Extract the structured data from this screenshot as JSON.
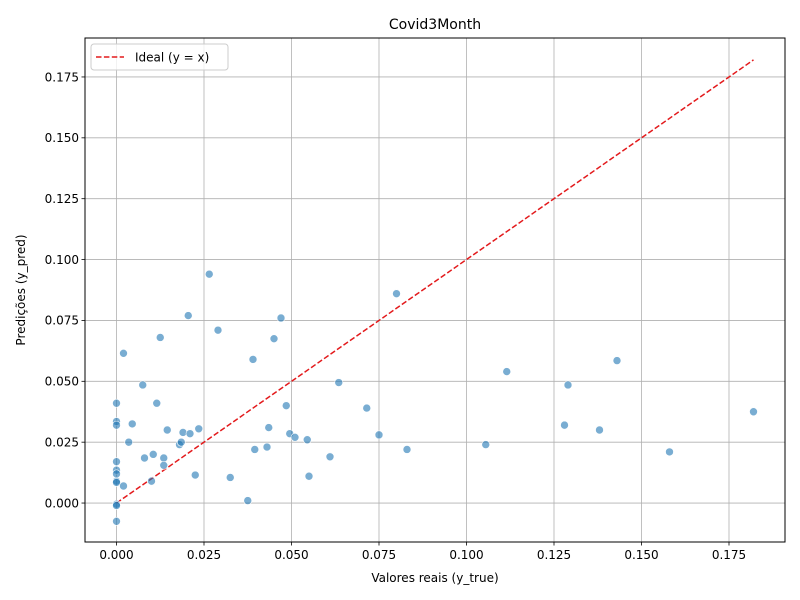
{
  "chart_data": {
    "type": "scatter",
    "title": "Covid3Month",
    "xlabel": "Valores reais (y_true)",
    "ylabel": "Predições (y_pred)",
    "xlim": [
      -0.009,
      0.191
    ],
    "ylim": [
      -0.016,
      0.191
    ],
    "grid": true,
    "legend": {
      "position": "top-left",
      "entries": [
        {
          "label": "Ideal (y = x)",
          "style": "dashed",
          "color": "#e31a1c"
        }
      ]
    },
    "x_ticks": [
      "0.000",
      "0.025",
      "0.050",
      "0.075",
      "0.100",
      "0.125",
      "0.150",
      "0.175"
    ],
    "x_tick_values": [
      0,
      0.025,
      0.05,
      0.075,
      0.1,
      0.125,
      0.15,
      0.175
    ],
    "y_ticks": [
      "0.000",
      "0.025",
      "0.050",
      "0.075",
      "0.100",
      "0.125",
      "0.150",
      "0.175"
    ],
    "y_tick_values": [
      0,
      0.025,
      0.05,
      0.075,
      0.1,
      0.125,
      0.15,
      0.175
    ],
    "ideal_line": {
      "x": [
        0,
        0.182
      ],
      "y": [
        0,
        0.182
      ]
    },
    "point_color": "#1f77b4",
    "line_color": "#e31a1c",
    "points": [
      [
        0.0,
        0.041
      ],
      [
        0.0,
        0.0335
      ],
      [
        0.0,
        0.032
      ],
      [
        0.0,
        0.017
      ],
      [
        0.0,
        0.0135
      ],
      [
        0.0,
        0.012
      ],
      [
        0.0,
        0.009
      ],
      [
        0.0,
        0.0085
      ],
      [
        0.0,
        -0.0005
      ],
      [
        0.0,
        -0.001
      ],
      [
        0.0,
        -0.0075
      ],
      [
        0.002,
        0.007
      ],
      [
        0.002,
        0.0615
      ],
      [
        0.0035,
        0.025
      ],
      [
        0.0045,
        0.0325
      ],
      [
        0.0075,
        0.0485
      ],
      [
        0.008,
        0.0185
      ],
      [
        0.01,
        0.009
      ],
      [
        0.0105,
        0.02
      ],
      [
        0.0115,
        0.041
      ],
      [
        0.0125,
        0.068
      ],
      [
        0.0135,
        0.0185
      ],
      [
        0.0135,
        0.0155
      ],
      [
        0.0145,
        0.03
      ],
      [
        0.018,
        0.024
      ],
      [
        0.0185,
        0.025
      ],
      [
        0.019,
        0.029
      ],
      [
        0.0205,
        0.077
      ],
      [
        0.021,
        0.0285
      ],
      [
        0.0225,
        0.0115
      ],
      [
        0.0235,
        0.0305
      ],
      [
        0.0265,
        0.094
      ],
      [
        0.029,
        0.071
      ],
      [
        0.0325,
        0.0105
      ],
      [
        0.0375,
        0.001
      ],
      [
        0.039,
        0.059
      ],
      [
        0.0395,
        0.022
      ],
      [
        0.043,
        0.023
      ],
      [
        0.0435,
        0.031
      ],
      [
        0.045,
        0.0675
      ],
      [
        0.047,
        0.076
      ],
      [
        0.0485,
        0.04
      ],
      [
        0.0495,
        0.0285
      ],
      [
        0.051,
        0.027
      ],
      [
        0.0545,
        0.026
      ],
      [
        0.055,
        0.011
      ],
      [
        0.061,
        0.019
      ],
      [
        0.0635,
        0.0495
      ],
      [
        0.0715,
        0.039
      ],
      [
        0.075,
        0.028
      ],
      [
        0.08,
        0.086
      ],
      [
        0.083,
        0.022
      ],
      [
        0.1055,
        0.024
      ],
      [
        0.1115,
        0.054
      ],
      [
        0.128,
        0.032
      ],
      [
        0.129,
        0.0485
      ],
      [
        0.138,
        0.03
      ],
      [
        0.143,
        0.0585
      ],
      [
        0.158,
        0.021
      ],
      [
        0.182,
        0.0375
      ]
    ]
  }
}
